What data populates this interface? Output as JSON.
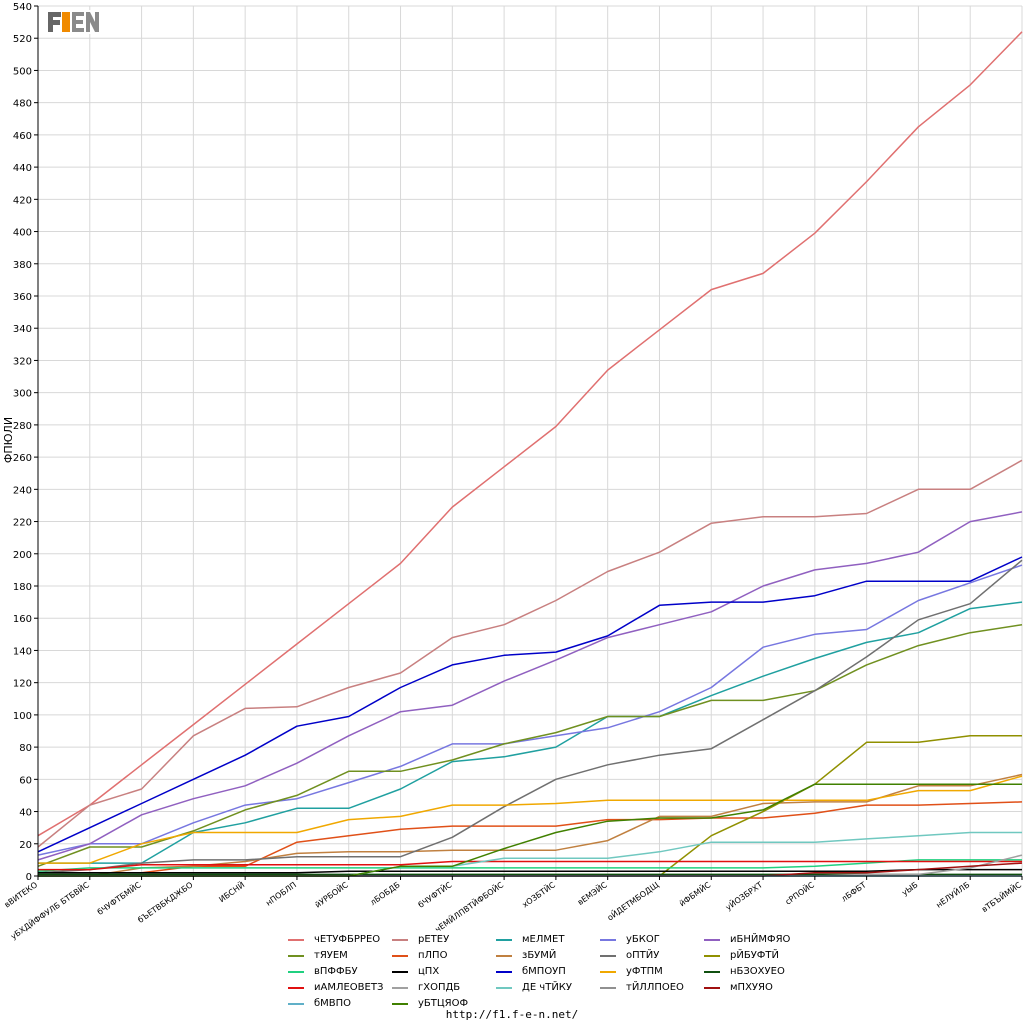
{
  "logo_text": "F1EN",
  "footer_url": "http://f1.f-e-n.net/",
  "colors": {
    "grid": "#d8d8d8",
    "axis": "#000000"
  },
  "chart_data": {
    "type": "line",
    "ylabel": "ФПЮЛИ",
    "ylim": [
      0,
      540
    ],
    "yticks": [
      0,
      20,
      40,
      60,
      80,
      100,
      120,
      140,
      160,
      180,
      200,
      220,
      240,
      260,
      280,
      300,
      320,
      340,
      360,
      380,
      400,
      420,
      440,
      460,
      480,
      500,
      520,
      540
    ],
    "grid": true,
    "legend_position": "bottom",
    "categories": [
      "вВИТЕКО",
      "уБХДЙФФУЛБ БТБВЙС",
      "бЧУФТБМЙС",
      "бЪЕТВБКДЖБО",
      "ИБСНЙ",
      "нПОБЛП",
      "йУРБОЙС",
      "лБОБДБ",
      "бЧУФТЙС",
      "чЕМЙЛПВТЙФБОЙС",
      "хОЗБТЙС",
      "вЕМЭЙС",
      "оЙДЕТМБОДЩ",
      "йФБМЙС",
      "уЙОЗБРХТ",
      "сРПОЙС",
      "лБФБТ",
      "уЫБ",
      "нЕЛУЙЛБ",
      "вТБЪЙМЙС"
    ],
    "series": [
      {
        "name": "чЕТУФБРРЕО",
        "color": "#e07070",
        "values": [
          25,
          44,
          69,
          94,
          119,
          144,
          169,
          194,
          229,
          254,
          279,
          314,
          339,
          364,
          374,
          399,
          431,
          465,
          491,
          524
        ]
      },
      {
        "name": "рЕТЕУ",
        "color": "#c88080",
        "values": [
          18,
          44,
          54,
          87,
          104,
          105,
          117,
          126,
          148,
          156,
          171,
          189,
          201,
          219,
          223,
          223,
          225,
          240,
          240,
          258
        ]
      },
      {
        "name": "мЕЛМЕТ",
        "color": "#20a0a0",
        "values": [
          8,
          8,
          8,
          27,
          33,
          42,
          42,
          54,
          71,
          74,
          80,
          99,
          99,
          112,
          124,
          135,
          145,
          151,
          166,
          170
        ]
      },
      {
        "name": "уБКОГ",
        "color": "#7777e0",
        "values": [
          13,
          20,
          20,
          33,
          44,
          48,
          58,
          68,
          82,
          82,
          87,
          92,
          102,
          117,
          142,
          150,
          153,
          171,
          182,
          193
        ]
      },
      {
        "name": "иБНЙМФЯО",
        "color": "#9060c0",
        "values": [
          10,
          20,
          38,
          48,
          56,
          70,
          87,
          102,
          106,
          121,
          134,
          148,
          156,
          164,
          180,
          190,
          194,
          201,
          220,
          226
        ]
      },
      {
        "name": "тЯУЕМ",
        "color": "#709020",
        "values": [
          6,
          18,
          18,
          28,
          41,
          50,
          65,
          65,
          72,
          82,
          89,
          99,
          99,
          109,
          109,
          115,
          131,
          143,
          151,
          156
        ]
      },
      {
        "name": "пЛПО",
        "color": "#e05018",
        "values": [
          2,
          2,
          2,
          6,
          6,
          21,
          25,
          29,
          31,
          31,
          31,
          35,
          35,
          36,
          36,
          39,
          44,
          44,
          45,
          46
        ]
      },
      {
        "name": "зБУМЙ",
        "color": "#c08040",
        "values": [
          0,
          0,
          5,
          6,
          9,
          14,
          15,
          15,
          16,
          16,
          16,
          22,
          37,
          37,
          45,
          46,
          46,
          56,
          56,
          63
        ]
      },
      {
        "name": "оПТЙУ",
        "color": "#707070",
        "values": [
          2,
          4,
          8,
          10,
          10,
          12,
          12,
          12,
          24,
          43,
          60,
          69,
          75,
          79,
          97,
          115,
          136,
          159,
          169,
          196
        ]
      },
      {
        "name": "рЙБУФТЙ",
        "color": "#909000",
        "values": [
          0,
          0,
          0,
          0,
          0,
          0,
          0,
          0,
          0,
          0,
          0,
          0,
          0,
          25,
          40,
          57,
          83,
          83,
          87,
          87
        ]
      },
      {
        "name": "вПФФБУ",
        "color": "#20d080",
        "values": [
          3,
          5,
          5,
          5,
          5,
          5,
          5,
          5,
          5,
          5,
          5,
          5,
          5,
          5,
          5,
          6,
          8,
          10,
          10,
          10
        ]
      },
      {
        "name": "цПХ",
        "color": "#000000",
        "values": [
          2,
          2,
          2,
          2,
          2,
          2,
          3,
          3,
          3,
          3,
          3,
          3,
          3,
          3,
          3,
          3,
          3,
          4,
          4,
          4
        ]
      },
      {
        "name": "бМПОУП",
        "color": "#0000c8",
        "values": [
          15,
          30,
          45,
          60,
          75,
          93,
          99,
          117,
          131,
          137,
          139,
          149,
          168,
          170,
          170,
          174,
          183,
          183,
          183,
          198
        ]
      },
      {
        "name": "уФТПМ",
        "color": "#f0a800",
        "values": [
          8,
          8,
          20,
          27,
          27,
          27,
          35,
          37,
          44,
          44,
          45,
          47,
          47,
          47,
          47,
          47,
          47,
          53,
          53,
          62
        ]
      },
      {
        "name": "нБЗОХУЕО",
        "color": "#105010",
        "values": [
          1,
          1,
          1,
          1,
          1,
          1,
          1,
          1,
          1,
          1,
          1,
          1,
          1,
          1,
          1,
          1,
          1,
          1,
          1,
          1
        ]
      },
      {
        "name": "иАМЛЕОВЕТЗ",
        "color": "#e01010",
        "values": [
          4,
          4,
          7,
          7,
          7,
          7,
          7,
          7,
          9,
          9,
          9,
          9,
          9,
          9,
          9,
          9,
          9,
          9,
          9,
          9
        ]
      },
      {
        "name": "гХОПДБ",
        "color": "#a0a0a0",
        "values": [
          0,
          0,
          0,
          0,
          0,
          0,
          0,
          0,
          0,
          0,
          0,
          0,
          0,
          0,
          0,
          0,
          1,
          1,
          5,
          13
        ]
      },
      {
        "name": "ДЕ чТЙКУ",
        "color": "#70c8c0",
        "values": [
          0,
          0,
          0,
          0,
          0,
          0,
          0,
          6,
          6,
          11,
          11,
          11,
          15,
          21,
          21,
          21,
          23,
          25,
          27,
          27
        ]
      },
      {
        "name": "тЙЛЛПОЕО",
        "color": "#909090",
        "values": [
          0,
          0,
          0,
          0,
          0,
          0,
          0,
          0,
          0,
          0,
          0,
          0,
          0,
          0,
          0,
          0,
          0,
          0,
          0,
          0
        ]
      },
      {
        "name": "мПХУЯО",
        "color": "#a01010",
        "values": [
          0,
          0,
          0,
          0,
          0,
          0,
          0,
          0,
          0,
          0,
          0,
          0,
          0,
          0,
          0,
          2,
          2,
          4,
          6,
          8
        ]
      },
      {
        "name": "бМВПО",
        "color": "#60b0c8",
        "values": [
          0,
          0,
          0,
          0,
          0,
          0,
          0,
          0,
          0,
          0,
          0,
          0,
          0,
          0,
          0,
          0,
          0,
          0,
          0,
          0
        ]
      },
      {
        "name": "уБТЦЯОФ",
        "color": "#408000",
        "values": [
          0,
          0,
          0,
          0,
          0,
          0,
          0,
          6,
          6,
          17,
          27,
          34,
          36,
          36,
          41,
          57,
          57,
          57,
          57,
          57
        ]
      }
    ]
  }
}
